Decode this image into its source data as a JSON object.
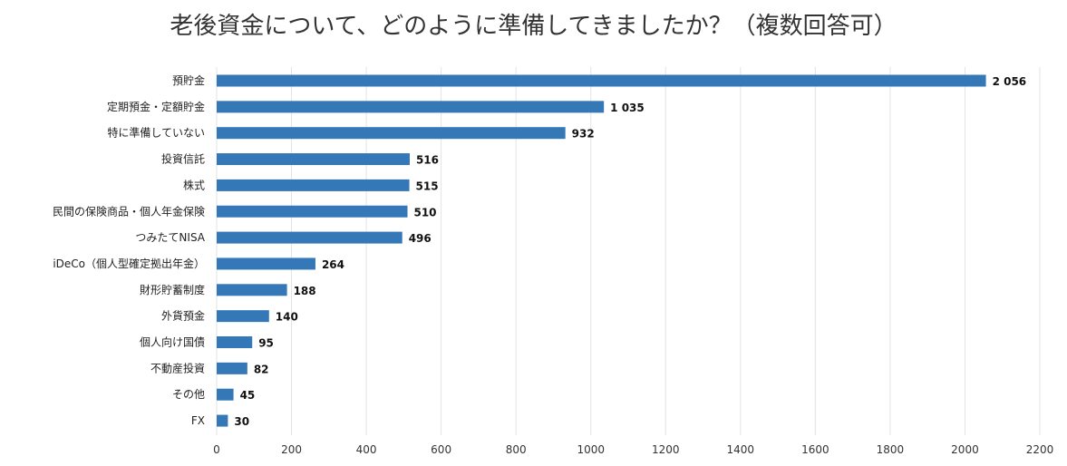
{
  "chart_data": {
    "type": "bar",
    "orientation": "horizontal",
    "title": "老後資金について、どのように準備してきましたか？（複数回答可）",
    "categories": [
      "預貯金",
      "定期預金・定額貯金",
      "特に準備していない",
      "投資信託",
      "株式",
      "民間の保険商品・個人年金保険",
      "つみたてNISA",
      "iDeCo（個人型確定拠出年金）",
      "財形貯蓄制度",
      "外貨預金",
      "個人向け国債",
      "不動産投資",
      "その他",
      "FX"
    ],
    "values": [
      2056,
      1035,
      932,
      516,
      515,
      510,
      496,
      264,
      188,
      140,
      95,
      82,
      45,
      30
    ],
    "value_labels": [
      "2 056",
      "1 035",
      "932",
      "516",
      "515",
      "510",
      "496",
      "264",
      "188",
      "140",
      "95",
      "82",
      "45",
      "30"
    ],
    "xlim": [
      0,
      2200
    ],
    "x_ticks": [
      0,
      200,
      400,
      600,
      800,
      1000,
      1200,
      1400,
      1600,
      1800,
      2000,
      2200
    ],
    "grid": true,
    "legend": "none",
    "bar_color": "#3478b8"
  }
}
